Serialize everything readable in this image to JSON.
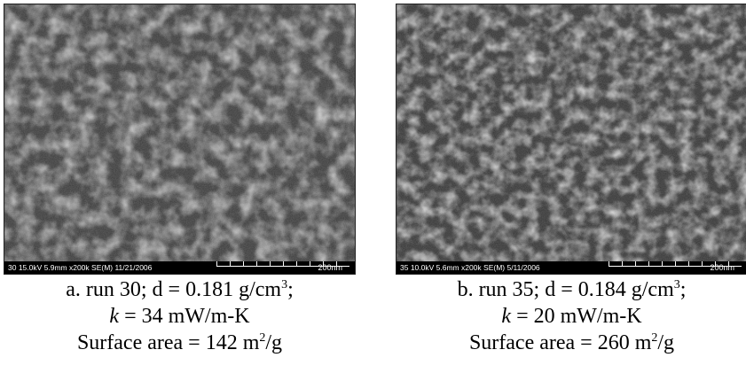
{
  "panels": [
    {
      "infobar": "30 15.0kV 5.9mm x200k SE(M) 11/21/2006",
      "scale": "200nm",
      "line1_prefix": "a. run 30; d = 0.181 g/cm",
      "line1_sup": "3",
      "line1_suffix": ";",
      "k_symbol": "k",
      "line2_rest": " = 34 mW/m-K",
      "line3_prefix": "Surface area = 142 m",
      "line3_sup": "2",
      "line3_suffix": "/g"
    },
    {
      "infobar": "35 10.0kV 5.6mm x200k SE(M) 5/11/2006",
      "scale": "200nm",
      "line1_prefix": "b. run 35; d = 0.184 g/cm",
      "line1_sup": "3",
      "line1_suffix": ";",
      "k_symbol": "k",
      "line2_rest": " = 20 mW/m-K",
      "line3_prefix": "Surface area = 260 m",
      "line3_sup": "2",
      "line3_suffix": "/g"
    }
  ]
}
